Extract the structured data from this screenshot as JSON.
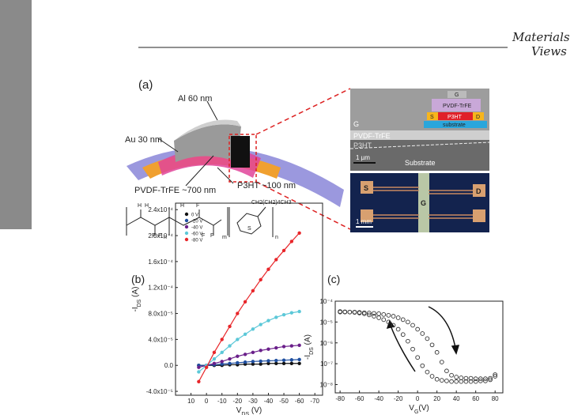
{
  "header": {
    "logo_line1": "Materials",
    "logo_line2": "Views"
  },
  "panel_a": {
    "label": "(a)",
    "al": "Al 60 nm",
    "au": "Au 30 nm",
    "pvdf": "PVDF-TrFE ~700 nm",
    "p3ht": "P3HT ~100 nm",
    "side_chain": "CH2(CH2)4CH3",
    "pvdf_atoms": [
      "H",
      "H",
      "F",
      "F",
      "n",
      "H",
      "F",
      "F",
      "F",
      "m"
    ],
    "p3ht_atoms": [
      "S",
      "n"
    ],
    "sem": {
      "inset_gate": "G",
      "inset_pvdf": "PVDF-TrFE",
      "inset_source": "S",
      "inset_p3ht": "P3HT",
      "inset_drain": "D",
      "inset_substrate": "substrate",
      "gate": "G",
      "pvdf": "PVDF-TrFE",
      "p3ht": "P3HT",
      "substrate": "Substrate",
      "scale": "1 µm"
    },
    "optical": {
      "source": "S",
      "gate": "G",
      "drain": "D",
      "scale": "1 mm"
    }
  },
  "chart_data": [
    {
      "type": "line",
      "label": "(b)",
      "x_label": "V",
      "x_label_sub": "DS",
      "x_label_unit": " (V)",
      "y_label": "-I",
      "y_label_sub": "DS",
      "y_label_unit": " (A)",
      "x": [
        5,
        0,
        -5,
        -10,
        -15,
        -20,
        -25,
        -30,
        -35,
        -40,
        -45,
        -50,
        -55,
        -60
      ],
      "xlim": [
        20,
        -75
      ],
      "xticks": [
        10,
        0,
        -10,
        -20,
        -30,
        -40,
        -50,
        -60,
        -70
      ],
      "ylim": [
        -4.6e-05,
        0.00025
      ],
      "yticks": [
        {
          "value": -4e-05,
          "label": "-4.0x10⁻⁵"
        },
        {
          "value": 0,
          "label": "0.0"
        },
        {
          "value": 4e-05,
          "label": "4.0x10⁻⁵"
        },
        {
          "value": 8e-05,
          "label": "8.0x10⁻⁵"
        },
        {
          "value": 0.00012,
          "label": "1.2x10⁻⁴"
        },
        {
          "value": 0.00016,
          "label": "1.6x10⁻⁴"
        },
        {
          "value": 0.0002,
          "label": "2.0x10⁻⁴"
        },
        {
          "value": 0.00024,
          "label": "2.4x10⁻⁴"
        }
      ],
      "legend": "upper left",
      "series": [
        {
          "name": "0 V",
          "color": "#111111",
          "values": [
            0,
            0,
            0,
            0,
            1e-06,
            1e-06,
            2e-06,
            2e-06,
            2e-06,
            3e-06,
            3e-06,
            3e-06,
            3e-06,
            3e-06
          ]
        },
        {
          "name": "-20 V",
          "color": "#1f4fa0",
          "values": [
            0,
            0,
            1e-06,
            2e-06,
            3e-06,
            4e-06,
            5e-06,
            6e-06,
            6.5e-06,
            7e-06,
            7.5e-06,
            8e-06,
            8.5e-06,
            9e-06
          ]
        },
        {
          "name": "-40 V",
          "color": "#6a1f8a",
          "values": [
            -3e-06,
            0,
            3e-06,
            6e-06,
            1e-05,
            1.4e-05,
            1.7e-05,
            2e-05,
            2.3e-05,
            2.5e-05,
            2.7e-05,
            2.9e-05,
            3e-05,
            3.1e-05
          ]
        },
        {
          "name": "-60 V",
          "color": "#5cc8d8",
          "values": [
            -1e-05,
            0,
            1e-05,
            2e-05,
            3e-05,
            4e-05,
            4.8e-05,
            5.6e-05,
            6.3e-05,
            6.9e-05,
            7.4e-05,
            7.8e-05,
            8.1e-05,
            8.3e-05
          ]
        },
        {
          "name": "-80 V",
          "color": "#e8262a",
          "values": [
            -2.5e-05,
            -3e-06,
            2e-05,
            4e-05,
            6e-05,
            8e-05,
            9.8e-05,
            0.000115,
            0.000132,
            0.000148,
            0.000163,
            0.000177,
            0.000191,
            0.000204
          ]
        }
      ]
    },
    {
      "type": "scatter",
      "label": "(c)",
      "x_label": "V",
      "x_label_sub": "G",
      "x_label_unit": "(V)",
      "y_label": "-I",
      "y_label_sub": "DS",
      "y_label_unit": " (A)",
      "log_y": true,
      "xlim": [
        -85,
        88
      ],
      "xticks": [
        -80,
        -60,
        -40,
        -20,
        0,
        20,
        40,
        60,
        80
      ],
      "ylim": [
        4e-09,
        0.0001
      ],
      "yticks": [
        {
          "value": 1e-08,
          "label": "10⁻⁸"
        },
        {
          "value": 1e-07,
          "label": "10⁻⁷"
        },
        {
          "value": 1e-06,
          "label": "10⁻⁶"
        },
        {
          "value": 1e-05,
          "label": "10⁻⁵"
        },
        {
          "value": 0.0001,
          "label": "10⁻⁴"
        }
      ],
      "series": [
        {
          "color": "#333333",
          "x": [
            -80,
            -75,
            -70,
            -65,
            -60,
            -55,
            -50,
            -45,
            -40,
            -35,
            -30,
            -25,
            -20,
            -15,
            -10,
            -5,
            0,
            5,
            10,
            15,
            20,
            25,
            30,
            35,
            40,
            45,
            50,
            55,
            60,
            65,
            70,
            75,
            80
          ],
          "values": [
            3e-05,
            3e-05,
            3e-05,
            3e-05,
            2.9e-05,
            2.8e-05,
            2.7e-05,
            2.6e-05,
            2.5e-05,
            2.3e-05,
            2.1e-05,
            1.9e-05,
            1.6e-05,
            1.3e-05,
            1e-05,
            7e-06,
            4.5e-06,
            2.8e-06,
            1.6e-06,
            8e-07,
            3.5e-07,
            1.2e-07,
            4.5e-08,
            2.8e-08,
            2.3e-08,
            2.1e-08,
            2e-08,
            2e-08,
            1.9e-08,
            1.9e-08,
            1.9e-08,
            2e-08,
            3e-08
          ]
        },
        {
          "color": "#333333",
          "x": [
            80,
            75,
            70,
            65,
            60,
            55,
            50,
            45,
            40,
            35,
            30,
            25,
            20,
            15,
            10,
            5,
            0,
            -5,
            -10,
            -15,
            -20,
            -25,
            -30,
            -35,
            -40,
            -45,
            -50,
            -55,
            -60,
            -65,
            -70,
            -75,
            -80
          ],
          "values": [
            2.5e-08,
            1.7e-08,
            1.5e-08,
            1.5e-08,
            1.4e-08,
            1.4e-08,
            1.4e-08,
            1.4e-08,
            1.4e-08,
            1.4e-08,
            1.5e-08,
            1.6e-08,
            1.8e-08,
            2.5e-08,
            4e-08,
            8e-08,
            2e-07,
            5e-07,
            1.2e-06,
            2.5e-06,
            4.5e-06,
            7e-06,
            1e-05,
            1.3e-05,
            1.6e-05,
            1.9e-05,
            2.2e-05,
            2.5e-05,
            2.7e-05,
            2.9e-05,
            3e-05,
            3.1e-05,
            3.2e-05
          ]
        }
      ]
    }
  ]
}
